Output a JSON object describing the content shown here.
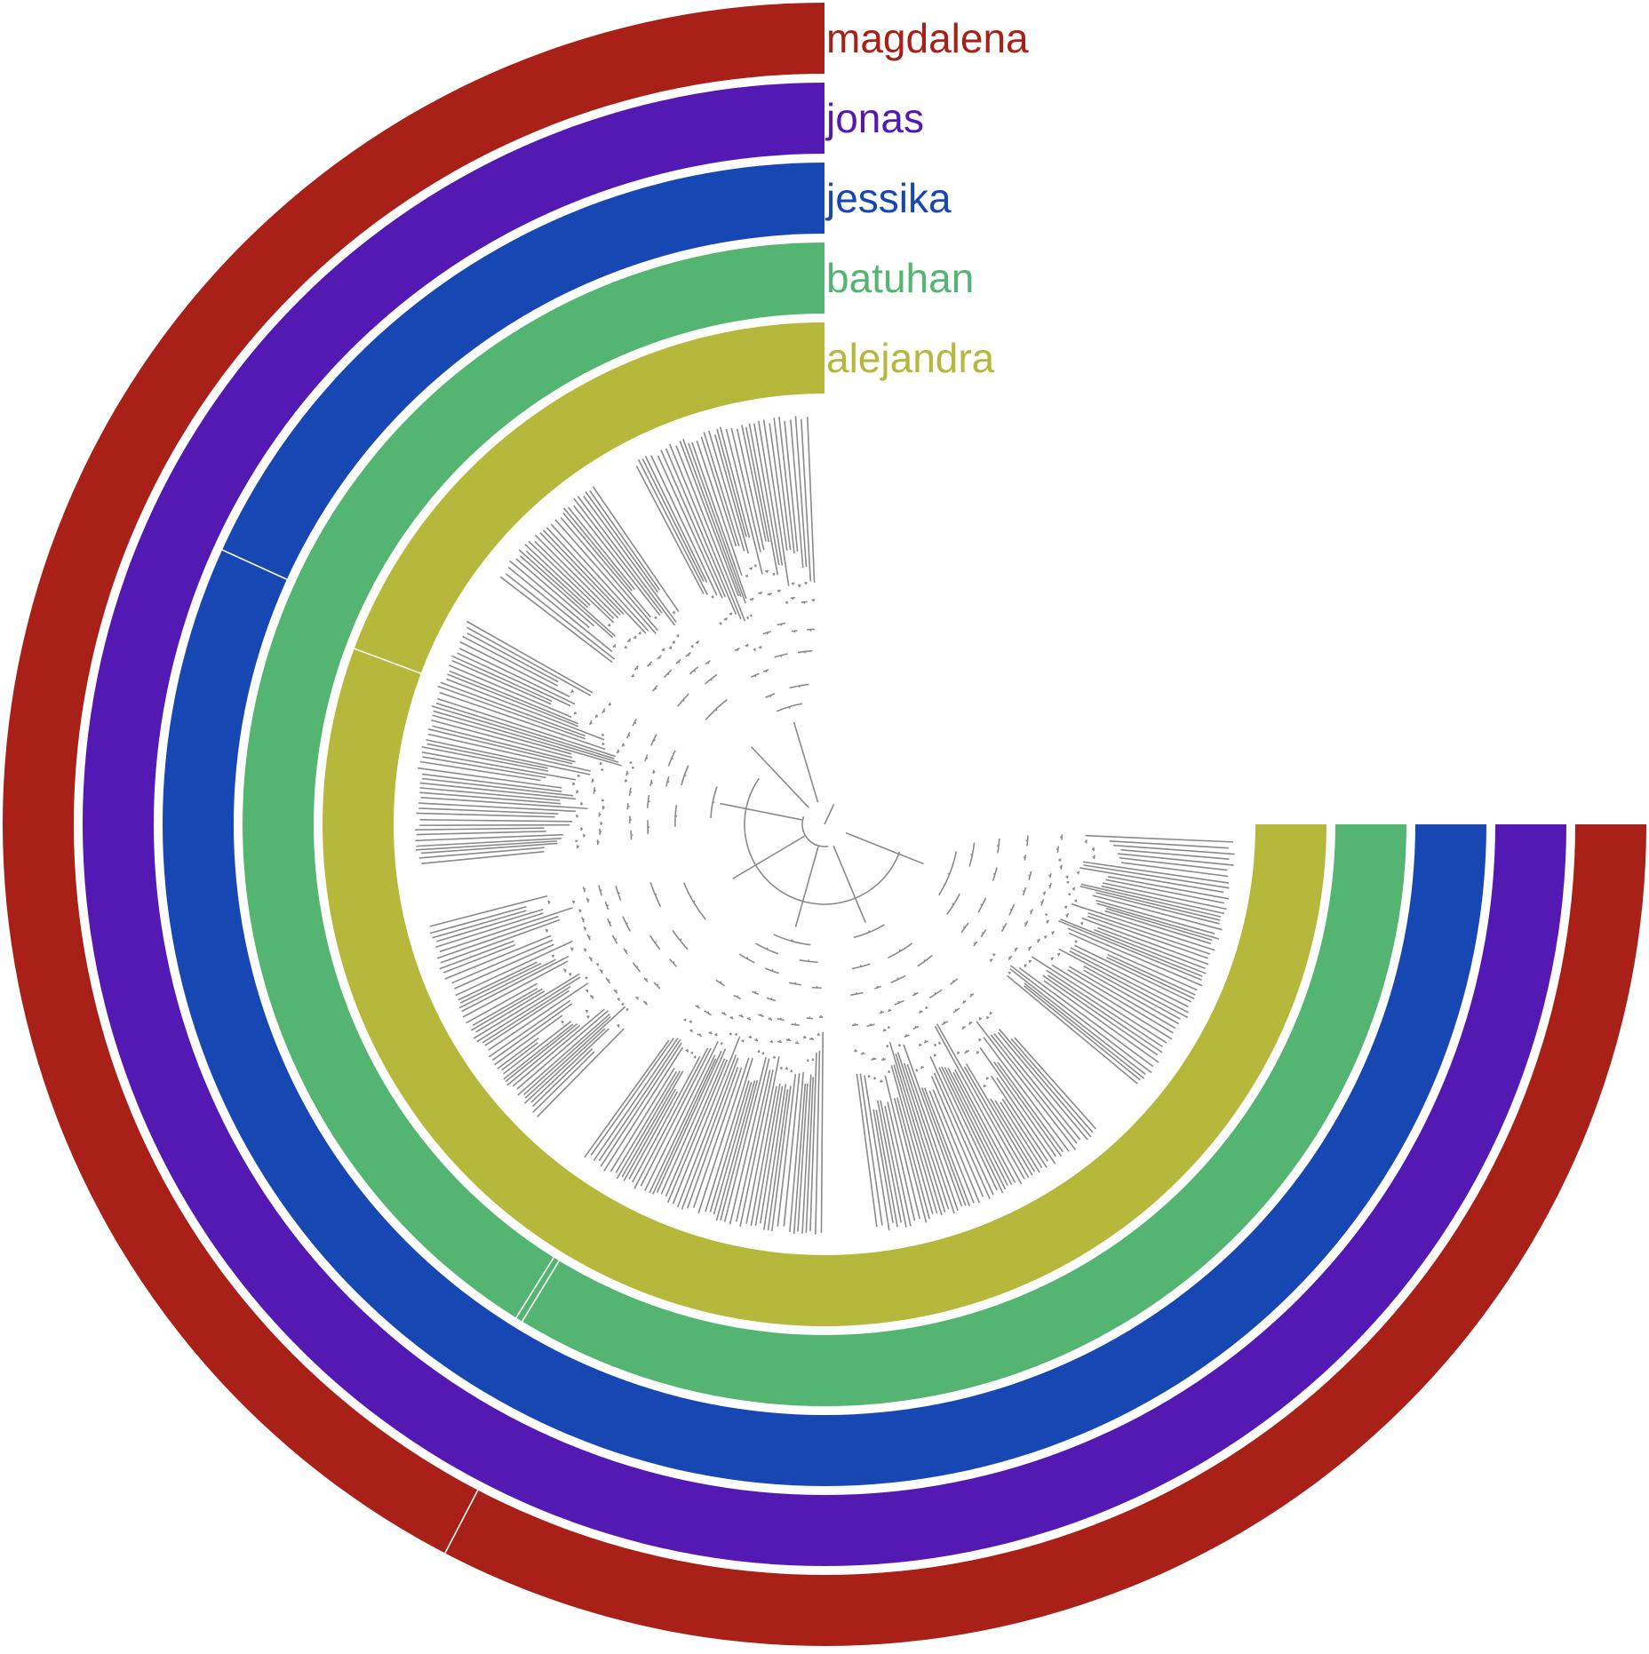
{
  "colors": {
    "magdalena": "#A82017",
    "jonas": "#5418B3",
    "jessika": "#1747B3",
    "batuhan": "#54B573",
    "alejandra": "#B5B83A",
    "branch": "#8A8A8A"
  },
  "rings": [
    {
      "label": "magdalena",
      "color": "#A82017"
    },
    {
      "label": "jonas",
      "color": "#5418B3"
    },
    {
      "label": "jessika",
      "color": "#1747B3"
    },
    {
      "label": "batuhan",
      "color": "#54B573"
    },
    {
      "label": "alejandra",
      "color": "#B5B83A"
    }
  ]
}
